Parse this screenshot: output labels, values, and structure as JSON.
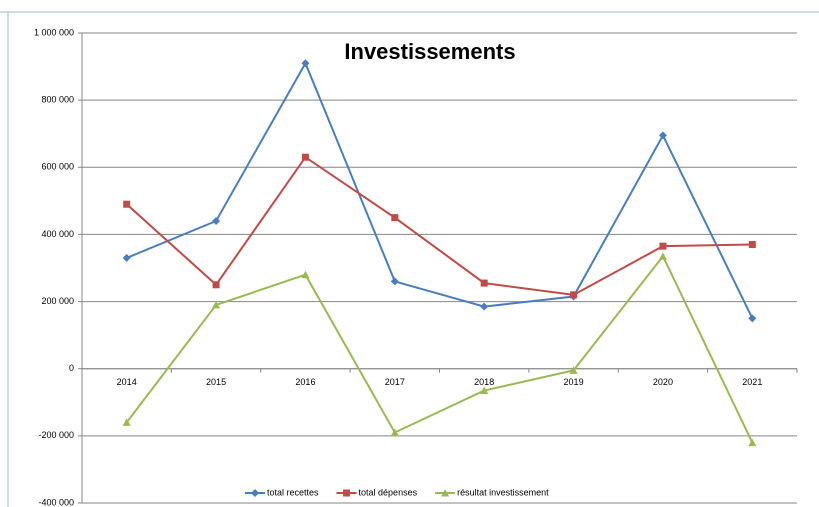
{
  "chart_data": {
    "type": "line",
    "title": "Investissements",
    "categories": [
      "2014",
      "2015",
      "2016",
      "2017",
      "2018",
      "2019",
      "2020",
      "2021"
    ],
    "series": [
      {
        "name": "total recettes",
        "color": "#4a7ebb",
        "marker": "diamond",
        "values": [
          330000,
          440000,
          910000,
          260000,
          185000,
          215000,
          695000,
          150000
        ]
      },
      {
        "name": "total dépenses",
        "color": "#be4b48",
        "marker": "square",
        "values": [
          490000,
          250000,
          630000,
          450000,
          255000,
          220000,
          365000,
          370000
        ]
      },
      {
        "name": "résultat investissement",
        "color": "#98b954",
        "marker": "triangle",
        "values": [
          -160000,
          190000,
          280000,
          -190000,
          -65000,
          -5000,
          335000,
          -220000
        ]
      }
    ],
    "ylim": [
      -400000,
      1000000
    ],
    "yticks": [
      {
        "value": -400000,
        "label": "-400 000"
      },
      {
        "value": -200000,
        "label": "-200 000"
      },
      0,
      {
        "value": 200000,
        "label": "200 000"
      },
      {
        "value": 400000,
        "label": "400 000"
      },
      {
        "value": 600000,
        "label": "600 000"
      },
      {
        "value": 800000,
        "label": "800 000"
      },
      {
        "value": 1000000,
        "label": "1 000 000"
      }
    ],
    "grid": true,
    "legend": "bottom"
  }
}
